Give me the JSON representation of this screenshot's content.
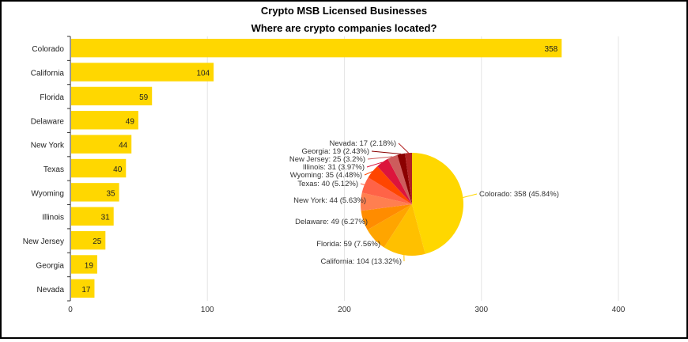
{
  "title": "Crypto MSB Licensed Businesses",
  "subtitle": "Where are crypto companies located?",
  "chart_data": [
    {
      "type": "bar",
      "orientation": "horizontal",
      "categories": [
        "Colorado",
        "California",
        "Florida",
        "Delaware",
        "New York",
        "Texas",
        "Wyoming",
        "Illinois",
        "New Jersey",
        "Georgia",
        "Nevada"
      ],
      "values": [
        358,
        104,
        59,
        49,
        44,
        40,
        35,
        31,
        25,
        19,
        17
      ],
      "xlim": [
        0,
        400
      ],
      "xticks": [
        "0",
        "100",
        "200",
        "300",
        "400"
      ],
      "grid": true,
      "color": "#FFD700"
    },
    {
      "type": "pie",
      "slices": [
        {
          "label": "Colorado: 358 (45.84%)",
          "value": 358,
          "color": "#FFD700"
        },
        {
          "label": "California: 104 (13.32%)",
          "value": 104,
          "color": "#FFC000"
        },
        {
          "label": "Florida: 59 (7.56%)",
          "value": 59,
          "color": "#FFA500"
        },
        {
          "label": "Delaware: 49 (6.27%)",
          "value": 49,
          "color": "#FF8C00"
        },
        {
          "label": "New York: 44 (5.63%)",
          "value": 44,
          "color": "#FF7F50"
        },
        {
          "label": "Texas: 40 (5.12%)",
          "value": 40,
          "color": "#FF6347"
        },
        {
          "label": "Wyoming: 35 (4.48%)",
          "value": 35,
          "color": "#FF4500"
        },
        {
          "label": "Illinois: 31 (3.97%)",
          "value": 31,
          "color": "#DC143C"
        },
        {
          "label": "New Jersey: 25 (3.2%)",
          "value": 25,
          "color": "#CD5C5C"
        },
        {
          "label": "Georgia: 19 (2.43%)",
          "value": 19,
          "color": "#8B0000"
        },
        {
          "label": "Nevada: 17 (2.18%)",
          "value": 17,
          "color": "#B22222"
        }
      ]
    }
  ]
}
